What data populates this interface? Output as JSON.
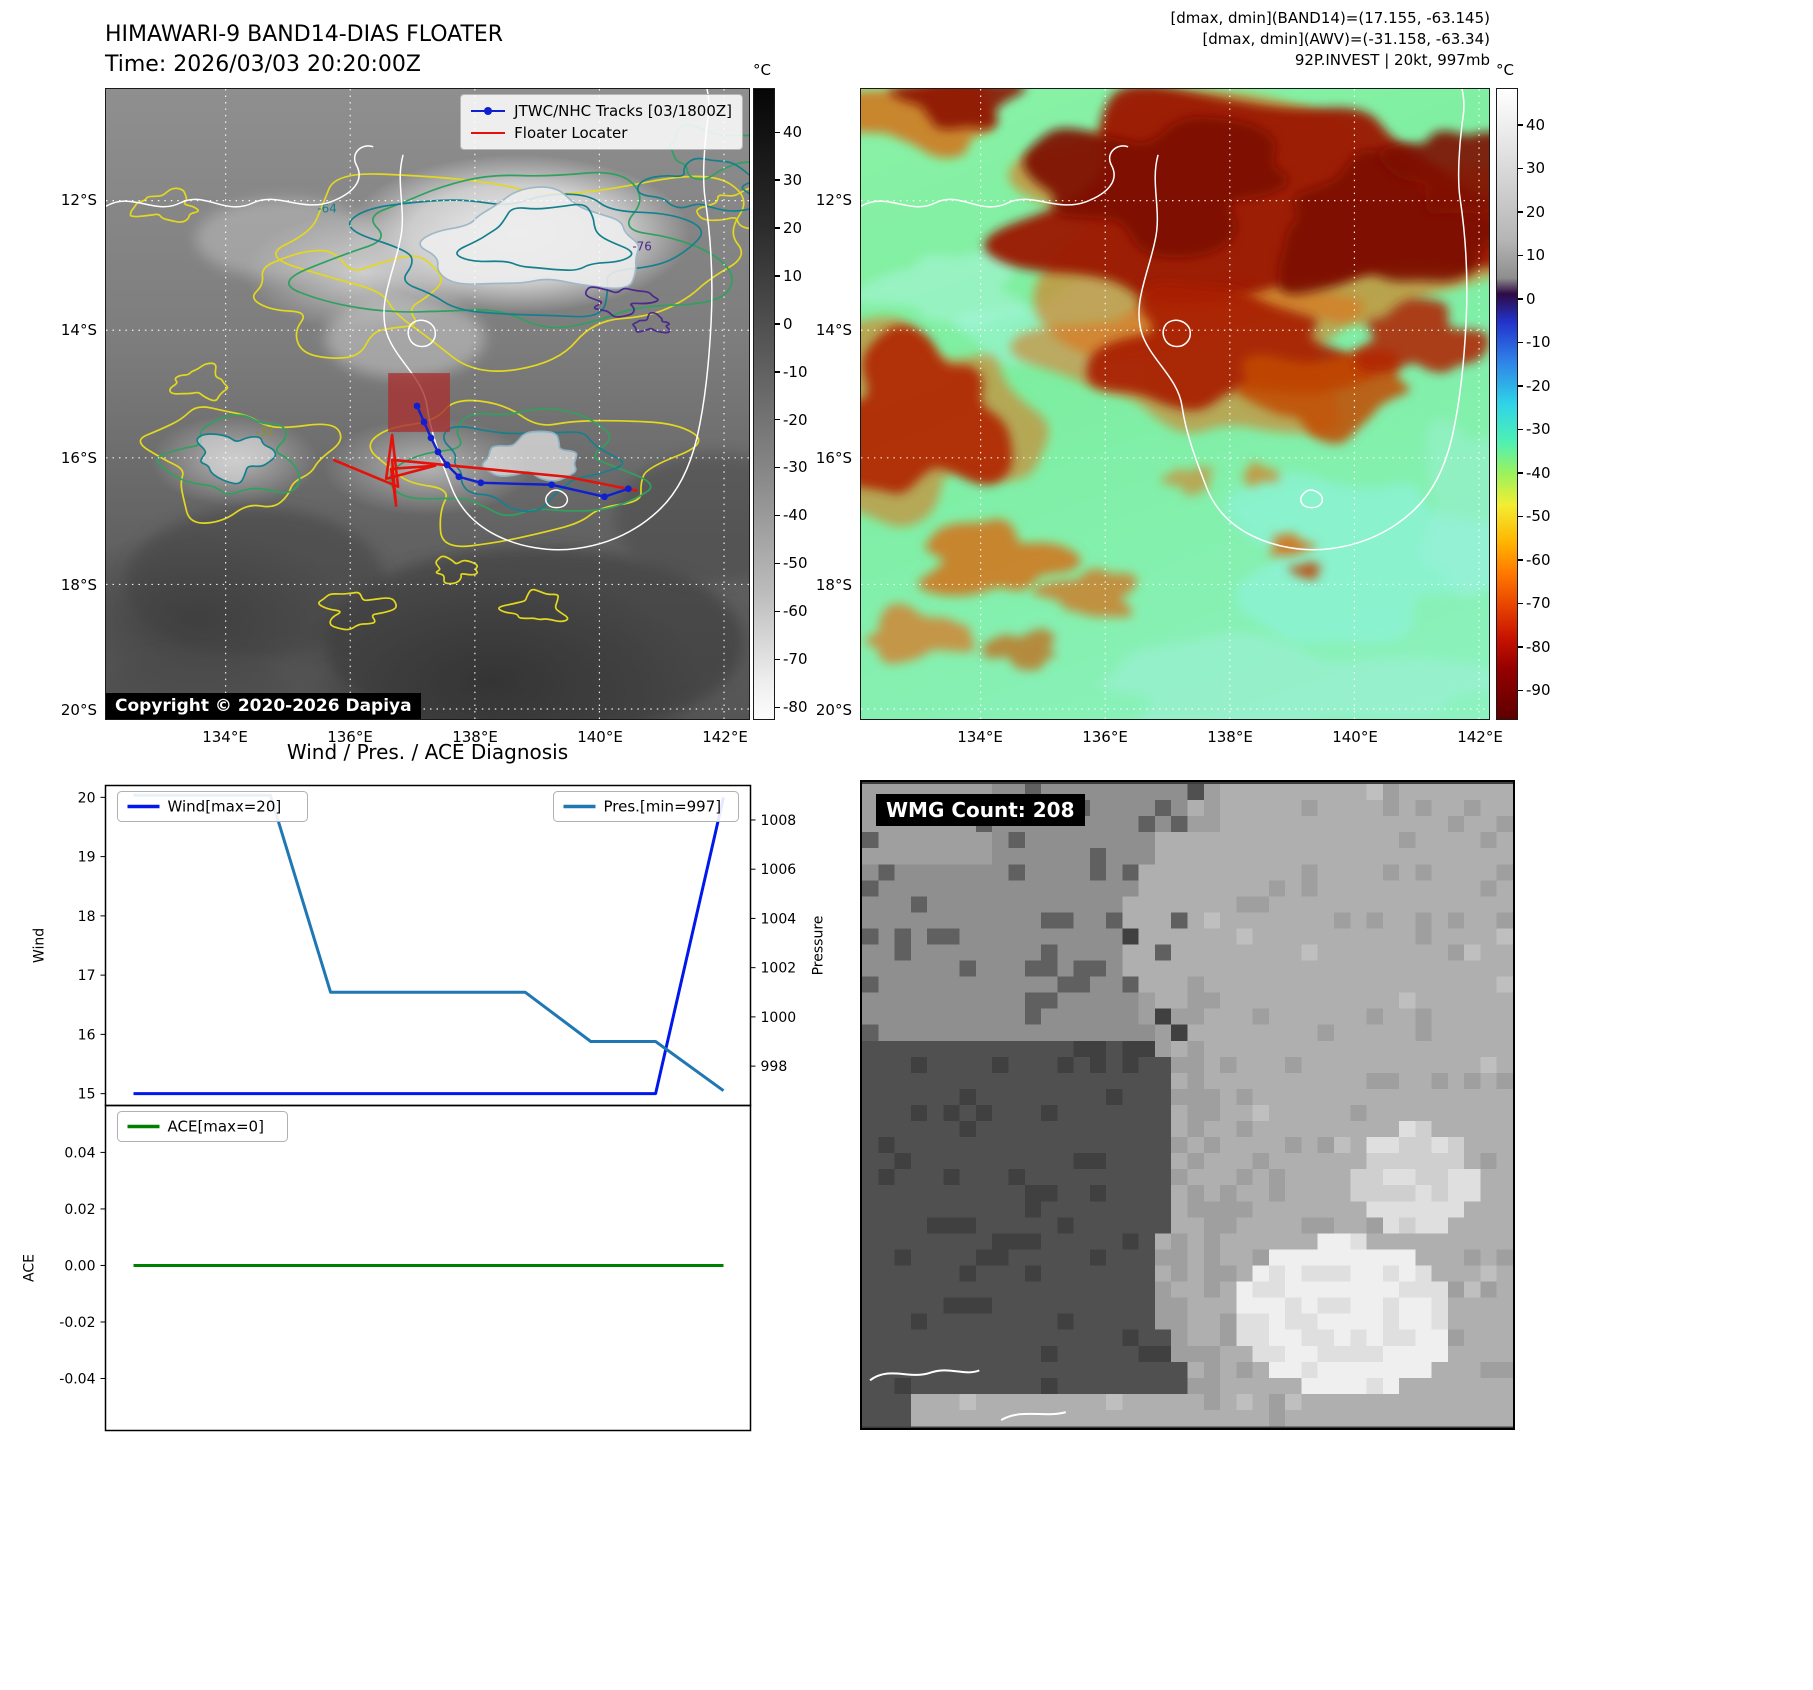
{
  "page": {
    "title_line1": "HIMAWARI-9 BAND14-DIAS FLOATER",
    "title_line2": "Time: 2026/03/03 20:20:00Z",
    "info_line1": "[dmax, dmin](BAND14)=(17.155, -63.145)",
    "info_line2": "[dmax, dmin](AWV)=(-31.158, -63.34)",
    "info_line3": "92P.INVEST | 20kt, 997mb"
  },
  "band14_map": {
    "legend_tracks": "JTWC/NHC Tracks [03/1800Z]",
    "legend_floater": "Floater Locater",
    "copyright": "Copyright © 2020-2026 Dapiya",
    "lat_ticks": [
      "12°S",
      "14°S",
      "16°S",
      "18°S",
      "20°S"
    ],
    "lon_ticks": [
      "134°E",
      "136°E",
      "138°E",
      "140°E",
      "142°E"
    ],
    "colorbar_unit": "°C",
    "colorbar_ticks": [
      "40",
      "30",
      "20",
      "10",
      "0",
      "-10",
      "-20",
      "-30",
      "-40",
      "-50",
      "-60",
      "-70",
      "-80"
    ],
    "contour_labels": [
      "-64",
      "-76",
      "-54",
      "-31"
    ]
  },
  "awv_map": {
    "lat_ticks": [
      "12°S",
      "14°S",
      "16°S",
      "18°S",
      "20°S"
    ],
    "lon_ticks": [
      "134°E",
      "136°E",
      "138°E",
      "140°E",
      "142°E"
    ],
    "colorbar_unit": "°C",
    "colorbar_ticks": [
      "40",
      "30",
      "20",
      "10",
      "0",
      "-10",
      "-20",
      "-30",
      "-40",
      "-50",
      "-60",
      "-70",
      "-80",
      "-90"
    ]
  },
  "wmg": {
    "label": "WMG Count: 208"
  },
  "colors": {
    "track": "#1020d0",
    "floater": "#e3120b",
    "wind": "#0018ee",
    "pressure": "#1f77b4",
    "ace": "#008000"
  },
  "chart_data": [
    {
      "type": "line",
      "title": "Wind / Pres. / ACE Diagnosis",
      "ylabel_left": "Wind",
      "ylabel_right": "Pressure",
      "yticks_left": [
        "20",
        "19",
        "18",
        "17",
        "16",
        "15"
      ],
      "yticks_right": [
        "1008",
        "1006",
        "1004",
        "1002",
        "1000",
        "998"
      ],
      "ylim_left": [
        14.8,
        20.2
      ],
      "ylim_right": [
        996.4,
        1009.4
      ],
      "legend_position": "upper-left / upper-right",
      "grid": false,
      "series": [
        {
          "name": "Wind[max=20]",
          "color": "#0018ee",
          "axis": "left",
          "x": [
            0,
            0.885,
            1
          ],
          "values": [
            15,
            15,
            20
          ]
        },
        {
          "name": "Pres.[min=997]",
          "color": "#1f77b4",
          "axis": "right",
          "x": [
            0,
            0.232,
            0.334,
            0.664,
            0.775,
            0.885,
            1
          ],
          "values": [
            1009,
            1009,
            1001,
            1001,
            999,
            999,
            997
          ]
        }
      ]
    },
    {
      "type": "line",
      "title": "",
      "ylabel_left": "ACE",
      "yticks_left": [
        "0.04",
        "0.02",
        "0.00",
        "-0.02",
        "-0.04"
      ],
      "ylim_left": [
        -0.0584,
        0.0566
      ],
      "legend_position": "upper-left",
      "grid": false,
      "series": [
        {
          "name": "ACE[max=0]",
          "color": "#008000",
          "axis": "left",
          "x": [
            0,
            1
          ],
          "values": [
            0,
            0
          ]
        }
      ]
    }
  ]
}
